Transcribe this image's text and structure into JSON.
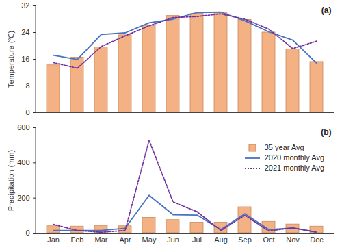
{
  "chart_data": [
    {
      "type": "bar",
      "title": "(a)",
      "y_label": "Temperature (℃)",
      "categories": [
        "Jan",
        "Feb",
        "Mar",
        "Apr",
        "May",
        "Jun",
        "Jul",
        "Aug",
        "Sep",
        "Oct",
        "Nov",
        "Dec"
      ],
      "ylim": [
        0,
        32
      ],
      "yticks": [
        0,
        8,
        16,
        24,
        32
      ],
      "grid": false,
      "tick_labels": "y",
      "series": [
        {
          "name": "35 year Avg",
          "type": "bar",
          "color": "#f4b183",
          "values": [
            14.2,
            16.5,
            19.6,
            23.2,
            26,
            29,
            29.6,
            29.8,
            27.8,
            24,
            19,
            15.2
          ]
        },
        {
          "name": "2020 monthly Avg",
          "type": "line",
          "line_style": "solid",
          "color": "#4472c4",
          "values": [
            17.2,
            15.9,
            23.4,
            23.9,
            26.9,
            28,
            30,
            30.1,
            27.5,
            24.2,
            21.7,
            14.8
          ]
        },
        {
          "name": "2021 monthly Avg",
          "type": "line",
          "line_style": "dotted",
          "color": "#7030a0",
          "values": [
            15,
            13.3,
            19.8,
            23,
            26,
            28.5,
            28.8,
            29.6,
            28,
            25,
            19.2,
            21.4
          ]
        }
      ]
    },
    {
      "type": "bar",
      "title": "(b)",
      "y_label": "Precipitation (mm)",
      "categories": [
        "Jan",
        "Feb",
        "Mar",
        "Apr",
        "May",
        "Jun",
        "Jul",
        "Aug",
        "Sep",
        "Oct",
        "Nov",
        "Dec"
      ],
      "ylim": [
        0,
        600
      ],
      "yticks": [
        0,
        200,
        400,
        600
      ],
      "grid": false,
      "legend": "top-right",
      "series": [
        {
          "name": "35 year Avg",
          "type": "bar",
          "color": "#f4b183",
          "values": [
            40,
            38,
            42,
            40,
            88,
            75,
            60,
            60,
            148,
            65,
            50,
            38
          ]
        },
        {
          "name": "2020 monthly Avg",
          "type": "line",
          "line_style": "solid",
          "color": "#4472c4",
          "values": [
            15,
            15,
            15,
            28,
            215,
            105,
            103,
            20,
            110,
            20,
            30,
            5
          ]
        },
        {
          "name": "2021 monthly Avg",
          "type": "line",
          "line_style": "dotted",
          "color": "#7030a0",
          "values": [
            50,
            15,
            5,
            15,
            528,
            178,
            122,
            15,
            102,
            12,
            30,
            5
          ]
        }
      ]
    }
  ]
}
